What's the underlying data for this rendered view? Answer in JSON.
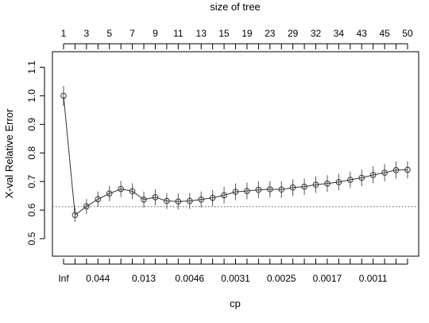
{
  "chart_data": {
    "type": "line",
    "ylabel": "X-val Relative Error",
    "xlabel": "cp",
    "top_axis_label": "size of tree",
    "ylim": [
      0.45,
      1.1
    ],
    "y_ticks": [
      0.5,
      0.6,
      0.7,
      0.8,
      0.9,
      1.0,
      1.1
    ],
    "y_tick_labels": [
      "0.5",
      "0.6",
      "0.7",
      "0.8",
      "0.9",
      "1.0",
      "1.1"
    ],
    "top_tick_labels": [
      {
        "index": 0,
        "label": "1"
      },
      {
        "index": 2,
        "label": "3"
      },
      {
        "index": 4,
        "label": "5"
      },
      {
        "index": 6,
        "label": "7"
      },
      {
        "index": 8,
        "label": "9"
      },
      {
        "index": 10,
        "label": "11"
      },
      {
        "index": 12,
        "label": "13"
      },
      {
        "index": 14,
        "label": "15"
      },
      {
        "index": 16,
        "label": "19"
      },
      {
        "index": 18,
        "label": "23"
      },
      {
        "index": 20,
        "label": "29"
      },
      {
        "index": 22,
        "label": "32"
      },
      {
        "index": 24,
        "label": "34"
      },
      {
        "index": 26,
        "label": "43"
      },
      {
        "index": 28,
        "label": "45"
      },
      {
        "index": 30,
        "label": "50"
      }
    ],
    "bottom_tick_labels": [
      {
        "index": 0,
        "label": "Inf"
      },
      {
        "index": 3,
        "label": "0.044"
      },
      {
        "index": 7,
        "label": "0.013"
      },
      {
        "index": 11,
        "label": "0.0046"
      },
      {
        "index": 15,
        "label": "0.0031"
      },
      {
        "index": 19,
        "label": "0.0025"
      },
      {
        "index": 23,
        "label": "0.0017"
      },
      {
        "index": 27,
        "label": "0.0011"
      }
    ],
    "series": [
      {
        "values": [
          1.0,
          0.583,
          0.613,
          0.638,
          0.658,
          0.674,
          0.666,
          0.637,
          0.645,
          0.632,
          0.63,
          0.632,
          0.637,
          0.643,
          0.652,
          0.664,
          0.667,
          0.671,
          0.673,
          0.672,
          0.679,
          0.682,
          0.689,
          0.693,
          0.698,
          0.706,
          0.713,
          0.723,
          0.731,
          0.74,
          0.741
        ],
        "errors": [
          0.035,
          0.025,
          0.026,
          0.027,
          0.027,
          0.028,
          0.028,
          0.028,
          0.028,
          0.028,
          0.028,
          0.028,
          0.028,
          0.028,
          0.029,
          0.029,
          0.029,
          0.029,
          0.029,
          0.029,
          0.029,
          0.029,
          0.029,
          0.029,
          0.029,
          0.029,
          0.029,
          0.03,
          0.03,
          0.03,
          0.03
        ]
      }
    ],
    "reference_line": 0.612
  }
}
